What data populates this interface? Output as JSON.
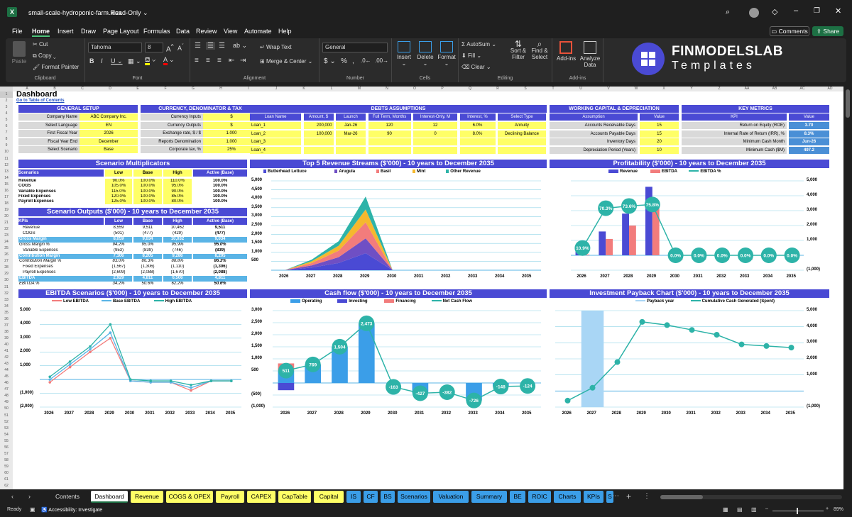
{
  "window": {
    "filename": "small-scale-hydroponic-farm.xlsx",
    "mode": "Read-Only"
  },
  "menu": [
    "File",
    "Home",
    "Insert",
    "Draw",
    "Page Layout",
    "Formulas",
    "Data",
    "Review",
    "View",
    "Automate",
    "Help"
  ],
  "menu_active": "Home",
  "top_buttons": {
    "comments": "Comments",
    "share": "Share"
  },
  "ribbon": {
    "clipboard": {
      "label": "Clipboard",
      "paste": "Paste",
      "cut": "Cut",
      "copy": "Copy",
      "format_painter": "Format Painter"
    },
    "font": {
      "label": "Font",
      "name": "Tahoma",
      "size": "8"
    },
    "alignment": {
      "label": "Alignment",
      "wrap": "Wrap Text",
      "merge": "Merge & Center"
    },
    "number": {
      "label": "Number",
      "format": "General"
    },
    "cells": {
      "label": "Cells",
      "insert": "Insert",
      "delete": "Delete",
      "format": "Format"
    },
    "editing": {
      "label": "Editing",
      "autosum": "AutoSum",
      "fill": "Fill",
      "clear": "Clear",
      "sort": "Sort & Filter",
      "find": "Find & Select"
    },
    "addins": {
      "label": "Add-ins",
      "addins": "Add-ins",
      "analyze": "Analyze Data"
    },
    "logo": {
      "brand": "FINMODELSLAB",
      "sub": "Templates"
    }
  },
  "columns": [
    "A",
    "B",
    "C",
    "D",
    "E",
    "F",
    "G",
    "H",
    "I",
    "J",
    "K",
    "L",
    "M",
    "N",
    "O",
    "P",
    "Q",
    "R",
    "S",
    "T",
    "U",
    "V",
    "W",
    "X",
    "Y",
    "Z",
    "AA",
    "AB",
    "AC",
    "AD"
  ],
  "dashboard": {
    "title": "Dashboard",
    "toc_link": "Go to Table of Contents",
    "general_setup": {
      "header": "GENERAL SETUP",
      "rows": [
        [
          "Company Name",
          "ABC Company Inc."
        ],
        [
          "Select Language",
          "EN"
        ],
        [
          "First Fiscal Year",
          "2026"
        ],
        [
          "Fiscal Year End",
          "December"
        ],
        [
          "Select Scenario",
          "Base"
        ]
      ]
    },
    "currency": {
      "header": "CURRENCY, DENOMINATOR & TAX",
      "rows": [
        [
          "Currency Inputs",
          "$"
        ],
        [
          "Currency Outputs",
          "$"
        ],
        [
          "Exchange rate, $ / $",
          "1.000"
        ],
        [
          "Reports Denomination",
          "1,000"
        ],
        [
          "Corporate tax, %",
          "25%"
        ]
      ]
    },
    "debts": {
      "header": "DEBTS ASSUMPTIONS",
      "cols": [
        "Loan Name",
        "Amount, $",
        "Launch",
        "Full Term, Months",
        "Interest-Only, M",
        "Interest, %",
        "Select Type"
      ],
      "rows": [
        [
          "Loan_1",
          "200,000",
          "Jan-26",
          "120",
          "12",
          "6.0%",
          "Annuity"
        ],
        [
          "Loan_2",
          "100,000",
          "Mar-26",
          "90",
          "0",
          "8.0%",
          "Declining Balance"
        ],
        [
          "Loan_3",
          "",
          "",
          "",
          "",
          "",
          ""
        ],
        [
          "Loan_4",
          "",
          "",
          "",
          "",
          "",
          ""
        ]
      ]
    },
    "wc": {
      "header": "WORKING CAPITAL & DEPRECIATION",
      "cols": [
        "Assumption",
        "Value"
      ],
      "rows": [
        [
          "Accounts Receivable Days",
          "15"
        ],
        [
          "Accounts Payable Days",
          "15"
        ],
        [
          "Inventory Days",
          "20"
        ],
        [
          "Depreciation Period (Years)",
          "10"
        ]
      ]
    },
    "kpi": {
      "header": "KEY METRICS",
      "cols": [
        "KPI",
        "Value"
      ],
      "rows": [
        [
          "Return on Equity (ROE)",
          "3.70"
        ],
        [
          "Internal Rate of Return (IRR), %",
          "8.3%"
        ],
        [
          "Minimum Cash Month",
          "Jun-26"
        ],
        [
          "Minimum Cash ($M)",
          "497.2"
        ]
      ]
    },
    "multipliers": {
      "header": "Scenario Multiplicators",
      "cols": [
        "Scenarios",
        "Low",
        "Base",
        "High",
        "Active (Base)"
      ],
      "rows": [
        [
          "Revenue",
          "90.0%",
          "100.0%",
          "110.0%",
          "100.0%"
        ],
        [
          "COGS",
          "105.0%",
          "100.0%",
          "95.0%",
          "100.0%"
        ],
        [
          "Variable Expenses",
          "115.0%",
          "100.0%",
          "90.0%",
          "100.0%"
        ],
        [
          "Fixed Expenses",
          "120.0%",
          "100.0%",
          "85.0%",
          "100.0%"
        ],
        [
          "Payroll Expenses",
          "125.0%",
          "100.0%",
          "80.0%",
          "100.0%"
        ]
      ]
    },
    "outputs": {
      "header": "Scenario Outputs ($'000) - 10 years to December 2035",
      "cols": [
        "KPIs",
        "Low",
        "Base",
        "High",
        "Active (Base)"
      ],
      "rows": [
        {
          "l": "Revenue",
          "v": [
            "8,559",
            "9,511",
            "10,462",
            "9,511"
          ],
          "t": "i"
        },
        {
          "l": "COGS",
          "v": [
            "(501)",
            "(477)",
            "(429)",
            "(477)"
          ],
          "t": "i"
        },
        {
          "l": "Gross Margin",
          "v": [
            "8,059",
            "9,034",
            "10,032",
            "9,034"
          ],
          "t": "h"
        },
        {
          "l": "Gross Margin %",
          "v": [
            "94.2%",
            "95.0%",
            "95.9%",
            "95.0%"
          ],
          "t": "p"
        },
        {
          "l": "Variable Expenses",
          "v": [
            "(953)",
            "(839)",
            "(746)",
            "(839)"
          ],
          "t": "i"
        },
        {
          "l": "Contribution Margin",
          "v": [
            "7,106",
            "8,205",
            "9,286",
            "8,205"
          ],
          "t": "h"
        },
        {
          "l": "Contribution Margin %",
          "v": [
            "83.0%",
            "86.3%",
            "88.8%",
            "86.3%"
          ],
          "t": "p"
        },
        {
          "l": "Fixed Expenses",
          "v": [
            "(1,567)",
            "(1,306)",
            "(1,110)",
            "(1,306)"
          ],
          "t": "i"
        },
        {
          "l": "Payroll Expenses",
          "v": [
            "(2,609)",
            "(2,088)",
            "(1,670)",
            "(2,088)"
          ],
          "t": "i"
        },
        {
          "l": "EBITDA",
          "v": [
            "2,929",
            "4,811",
            "6,506",
            "4,811"
          ],
          "t": "h"
        },
        {
          "l": "EBITDA %",
          "v": [
            "34.2%",
            "50.6%",
            "62.2%",
            "50.6%"
          ],
          "t": "p"
        }
      ]
    }
  },
  "chart_data": [
    {
      "id": "revenue",
      "type": "area",
      "title": "Top 5 Revenue Streams ($'000) - 10 years to December 2035",
      "categories": [
        "2026",
        "2027",
        "2028",
        "2029",
        "2030",
        "2031",
        "2032",
        "2033",
        "2034",
        "2035"
      ],
      "series": [
        {
          "name": "Butterhead Lettuce",
          "color": "#4a4ad4",
          "values": [
            0,
            150,
            400,
            950,
            0,
            0,
            0,
            0,
            0,
            0
          ]
        },
        {
          "name": "Arugula",
          "color": "#6f4fc4",
          "values": [
            0,
            120,
            330,
            830,
            0,
            0,
            0,
            0,
            0,
            0
          ]
        },
        {
          "name": "Basil",
          "color": "#f27c7c",
          "values": [
            0,
            130,
            360,
            900,
            0,
            0,
            0,
            0,
            0,
            0
          ]
        },
        {
          "name": "Mint",
          "color": "#f5b82e",
          "values": [
            0,
            100,
            280,
            720,
            0,
            0,
            0,
            0,
            0,
            0
          ]
        },
        {
          "name": "Other Revenue",
          "color": "#2db3a8",
          "values": [
            0,
            90,
            250,
            720,
            0,
            0,
            0,
            0,
            0,
            0
          ]
        }
      ],
      "yticks": [
        "5,000",
        "4,500",
        "4,000",
        "3,500",
        "3,000",
        "2,500",
        "2,000",
        "1,500",
        "1,000",
        "500"
      ],
      "ylim": [
        0,
        5000
      ]
    },
    {
      "id": "profit",
      "type": "bar",
      "title": "Profitability ($'000) - 10 years to December 2035",
      "categories": [
        "2026",
        "2027",
        "2028",
        "2029",
        "2030",
        "2031",
        "2032",
        "2033",
        "2034",
        "2035"
      ],
      "series": [
        {
          "name": "Revenue",
          "color": "#4a4ad4",
          "values": [
            500,
            1600,
            2800,
            4600,
            0,
            0,
            0,
            0,
            0,
            0
          ]
        },
        {
          "name": "EBITDA",
          "color": "#f27c7c",
          "values": [
            50,
            1100,
            2000,
            3400,
            -300,
            -300,
            -300,
            -300,
            -100,
            -100
          ]
        },
        {
          "name": "EBITDA %",
          "color": "#2db3a8",
          "values": [
            10.9,
            70.3,
            73.6,
            75.8,
            0,
            0,
            0,
            0,
            0,
            0
          ]
        }
      ],
      "labels": [
        "10.9%",
        "70.3%",
        "73.6%",
        "75.8%",
        "0.0%",
        "0.0%",
        "0.0%",
        "0.0%",
        "0.0%",
        "0.0%"
      ],
      "yticks": [
        "5,000",
        "4,000",
        "3,000",
        "2,000",
        "1,000",
        "",
        "(1,000)"
      ],
      "ylim": [
        -1000,
        5000
      ]
    },
    {
      "id": "ebitda",
      "type": "line",
      "title": "EBITDA Scenarios ($'000) - 10 years to December 2035",
      "categories": [
        "2026",
        "2027",
        "2028",
        "2029",
        "2030",
        "2031",
        "2032",
        "2033",
        "2034",
        "2035"
      ],
      "series": [
        {
          "name": "Low EBITDA",
          "color": "#f27c7c",
          "values": [
            -200,
            900,
            2000,
            3000,
            -100,
            -200,
            -200,
            -800,
            -100,
            -100
          ]
        },
        {
          "name": "Base EBITDA",
          "color": "#5ab4e6",
          "values": [
            0,
            1100,
            2200,
            3400,
            -100,
            -200,
            -200,
            -600,
            -100,
            -100
          ]
        },
        {
          "name": "High EBITDA",
          "color": "#2db3a8",
          "values": [
            200,
            1300,
            2400,
            4000,
            0,
            -100,
            -100,
            -400,
            -100,
            -100
          ]
        }
      ],
      "yticks": [
        "5,000",
        "4,000",
        "3,000",
        "2,000",
        "1,000",
        "",
        "(1,000)",
        "(2,000)"
      ],
      "ylim": [
        -2000,
        5000
      ]
    },
    {
      "id": "cashflow",
      "type": "bar",
      "title": "Cash flow ($'000) - 10 years to December 2035",
      "categories": [
        "2026",
        "2027",
        "2028",
        "2029",
        "2030",
        "2031",
        "2032",
        "2033",
        "2034",
        "2035"
      ],
      "series": [
        {
          "name": "Operating",
          "color": "#3b9ee8",
          "values": [
            511,
            769,
            1504,
            2473,
            0,
            -427,
            0,
            -726,
            -148,
            0
          ]
        },
        {
          "name": "Investing",
          "color": "#4a4ad4",
          "values": [
            -300,
            0,
            0,
            0,
            0,
            0,
            0,
            0,
            0,
            0
          ]
        },
        {
          "name": "Financing",
          "color": "#f27c7c",
          "values": [
            300,
            0,
            0,
            0,
            0,
            0,
            0,
            0,
            0,
            0
          ]
        },
        {
          "name": "Net Cash Flow",
          "color": "#2db3a8",
          "values": [
            511,
            769,
            1504,
            2473,
            -163,
            -427,
            -382,
            -726,
            -148,
            -124
          ]
        }
      ],
      "labels": [
        "511",
        "769",
        "1,504",
        "2,473",
        "-163",
        "-427",
        "-382",
        "-726",
        "-148",
        "-124"
      ],
      "yticks": [
        "3,000",
        "2,500",
        "2,000",
        "1,500",
        "1,000",
        "500",
        "",
        "(500)",
        "(1,000)"
      ],
      "ylim": [
        -1000,
        3000
      ]
    },
    {
      "id": "payback",
      "type": "line",
      "title": "Investment Payback Chart ($'000) - 10 years to December 2035",
      "categories": [
        "2026",
        "2027",
        "2028",
        "2029",
        "2030",
        "2031",
        "2032",
        "2033",
        "2034",
        "2035"
      ],
      "series": [
        {
          "name": "Payback year",
          "color": "#a9d6f5",
          "values": [
            0,
            1,
            0,
            0,
            0,
            0,
            0,
            0,
            0,
            0
          ]
        },
        {
          "name": "Cumulative Cash Generated (Spent)",
          "color": "#2db3a8",
          "values": [
            -600,
            200,
            1800,
            4300,
            4100,
            3800,
            3500,
            2900,
            2800,
            2700
          ]
        }
      ],
      "yticks": [
        "5,000",
        "4,000",
        "3,000",
        "2,000",
        "1,000",
        "",
        "(1,000)"
      ],
      "ylim": [
        -1000,
        5000
      ]
    }
  ],
  "sheet_tabs": [
    {
      "name": "Contents",
      "bg": "#1f1f1f",
      "fg": "#ddd"
    },
    {
      "name": "Dashboard",
      "bg": "#ffffff",
      "fg": "#000"
    },
    {
      "name": "Revenue",
      "bg": "#ffff66",
      "fg": "#000"
    },
    {
      "name": "COGS & OPEX",
      "bg": "#ffff66",
      "fg": "#000"
    },
    {
      "name": "Payroll",
      "bg": "#ffff66",
      "fg": "#000"
    },
    {
      "name": "CAPEX",
      "bg": "#ffff66",
      "fg": "#000"
    },
    {
      "name": "CapTable",
      "bg": "#ffff66",
      "fg": "#000"
    },
    {
      "name": "Capital",
      "bg": "#ffff66",
      "fg": "#000"
    },
    {
      "name": "IS",
      "bg": "#3b9ee8",
      "fg": "#000"
    },
    {
      "name": "CF",
      "bg": "#3b9ee8",
      "fg": "#000"
    },
    {
      "name": "BS",
      "bg": "#3b9ee8",
      "fg": "#000"
    },
    {
      "name": "Scenarios",
      "bg": "#3b9ee8",
      "fg": "#000"
    },
    {
      "name": "Valuation",
      "bg": "#3b9ee8",
      "fg": "#000"
    },
    {
      "name": "Summary",
      "bg": "#3b9ee8",
      "fg": "#000"
    },
    {
      "name": "BE",
      "bg": "#3b9ee8",
      "fg": "#000"
    },
    {
      "name": "ROIC",
      "bg": "#3b9ee8",
      "fg": "#000"
    },
    {
      "name": "Charts",
      "bg": "#3b9ee8",
      "fg": "#000"
    },
    {
      "name": "KPIs",
      "bg": "#3b9ee8",
      "fg": "#000"
    },
    {
      "name": "S",
      "bg": "#3b9ee8",
      "fg": "#000"
    }
  ],
  "status": {
    "ready": "Ready",
    "accessibility": "Accessibility: Investigate",
    "zoom": "89%"
  }
}
